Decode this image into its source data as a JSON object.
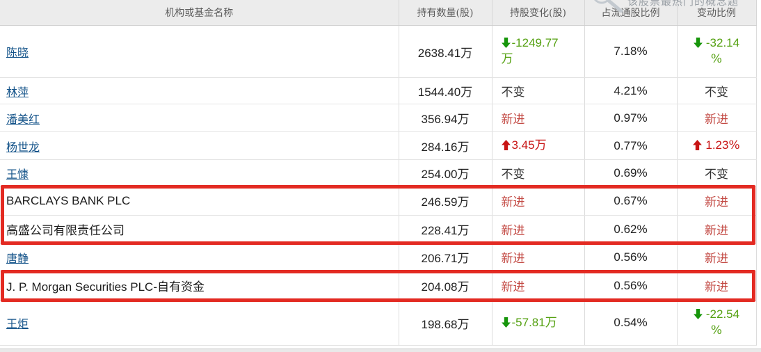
{
  "overlay": {
    "concept_link_text": "该股票最热门的概念题",
    "magnifier_icon": "magnifier-icon"
  },
  "table": {
    "headers": [
      "机构或基金名称",
      "持有数量(股)",
      "持股变化(股)",
      "占流通股比例",
      "变动比例"
    ],
    "rows": [
      {
        "name": "陈晓",
        "link": true,
        "quantity": "2638.41万",
        "change": {
          "type": "down",
          "value": "-1249.77",
          "unit": "万",
          "two_line": true
        },
        "ratio": "7.18%",
        "delta": {
          "type": "down",
          "value": "-32.14",
          "unit": "%",
          "two_line": true
        },
        "highlighted": false
      },
      {
        "name": "林萍",
        "link": true,
        "quantity": "1544.40万",
        "change": {
          "type": "flat",
          "value": "不变"
        },
        "ratio": "4.21%",
        "delta": {
          "type": "flat",
          "value": "不变"
        },
        "highlighted": false
      },
      {
        "name": "潘美红",
        "link": true,
        "quantity": "356.94万",
        "change": {
          "type": "new",
          "value": "新进"
        },
        "ratio": "0.97%",
        "delta": {
          "type": "new",
          "value": "新进"
        },
        "highlighted": false
      },
      {
        "name": "杨世龙",
        "link": true,
        "quantity": "284.16万",
        "change": {
          "type": "up",
          "value": "3.45",
          "unit": "万",
          "two_line": false
        },
        "ratio": "0.77%",
        "delta": {
          "type": "up",
          "value": "1.23",
          "unit": "%",
          "two_line": false
        },
        "highlighted": false
      },
      {
        "name": "王慷",
        "link": true,
        "quantity": "254.00万",
        "change": {
          "type": "flat",
          "value": "不变"
        },
        "ratio": "0.69%",
        "delta": {
          "type": "flat",
          "value": "不变"
        },
        "highlighted": false
      },
      {
        "name": "BARCLAYS BANK PLC",
        "link": false,
        "quantity": "246.59万",
        "change": {
          "type": "new",
          "value": "新进"
        },
        "ratio": "0.67%",
        "delta": {
          "type": "new",
          "value": "新进"
        },
        "highlighted": true
      },
      {
        "name": "高盛公司有限责任公司",
        "link": false,
        "quantity": "228.41万",
        "change": {
          "type": "new",
          "value": "新进"
        },
        "ratio": "0.62%",
        "delta": {
          "type": "new",
          "value": "新进"
        },
        "highlighted": true
      },
      {
        "name": "唐静",
        "link": true,
        "quantity": "206.71万",
        "change": {
          "type": "new",
          "value": "新进"
        },
        "ratio": "0.56%",
        "delta": {
          "type": "new",
          "value": "新进"
        },
        "highlighted": false
      },
      {
        "name": "J. P. Morgan Securities PLC-自有资金",
        "link": false,
        "quantity": "204.08万",
        "change": {
          "type": "new",
          "value": "新进"
        },
        "ratio": "0.56%",
        "delta": {
          "type": "new",
          "value": "新进"
        },
        "highlighted": true
      },
      {
        "name": "王炬",
        "link": true,
        "quantity": "198.68万",
        "change": {
          "type": "down",
          "value": "-57.81",
          "unit": "万",
          "two_line": false
        },
        "ratio": "0.54%",
        "delta": {
          "type": "down",
          "value": "-22.54",
          "unit": "%",
          "two_line": true
        },
        "highlighted": false
      }
    ]
  },
  "colors": {
    "up_red": "#c81414",
    "new_entry_red": "#c34a44",
    "down_green_text": "#55a112",
    "down_green_arrow": "#16950a",
    "link_blue": "#15548a",
    "highlight_box_red": "#e32a22",
    "header_bg": "#ececec"
  }
}
